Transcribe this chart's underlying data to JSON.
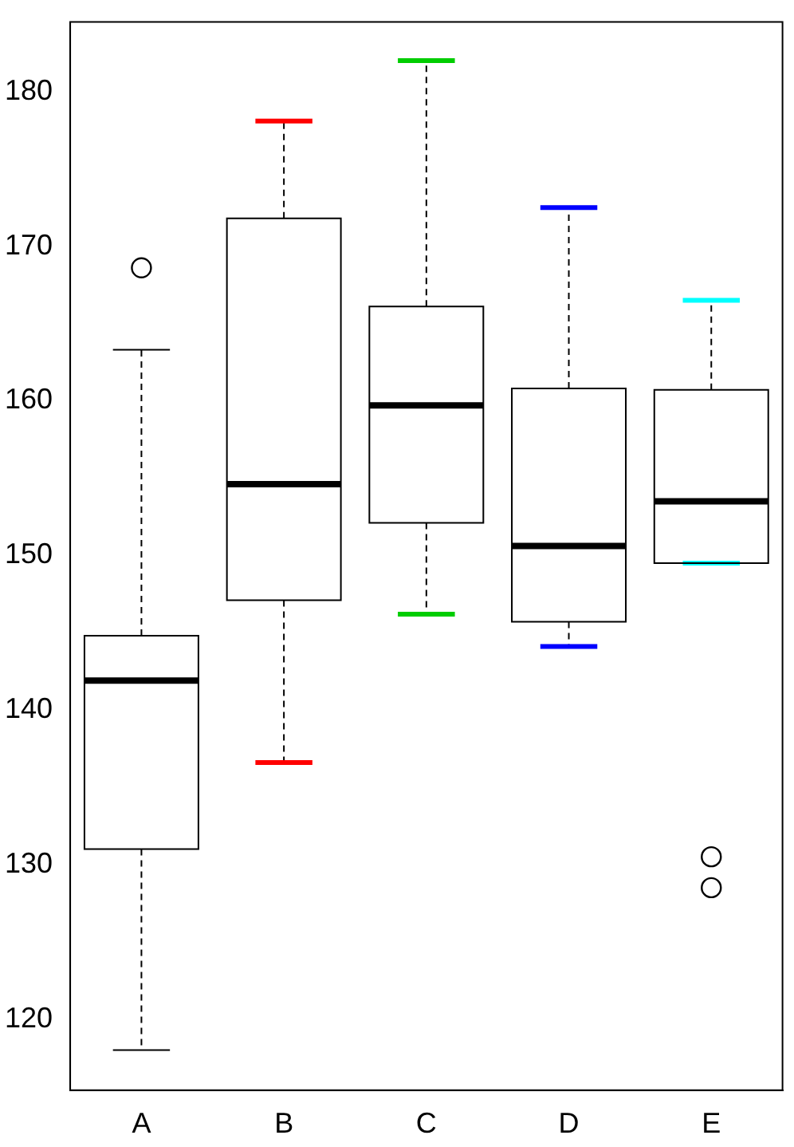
{
  "chart_data": {
    "type": "box",
    "categories": [
      "A",
      "B",
      "C",
      "D",
      "E"
    ],
    "boxes": [
      {
        "low": 118.0,
        "q1": 131.0,
        "median": 141.9,
        "q3": 144.8,
        "high": 163.3,
        "outliers": [
          168.6
        ]
      },
      {
        "low": 136.6,
        "q1": 147.1,
        "median": 154.6,
        "q3": 171.8,
        "high": 178.1
      },
      {
        "low": 146.2,
        "q1": 152.1,
        "median": 159.7,
        "q3": 166.1,
        "high": 182.0
      },
      {
        "low": 144.1,
        "q1": 145.7,
        "median": 150.6,
        "q3": 160.8,
        "high": 172.5
      },
      {
        "low": 149.5,
        "q1": 149.5,
        "median": 153.5,
        "q3": 160.7,
        "high": 166.5,
        "outliers": [
          130.5,
          128.5
        ]
      }
    ],
    "ylim": [
      115.4,
      184.5
    ],
    "yticks": [
      120,
      130,
      140,
      150,
      160,
      170,
      180
    ],
    "grid": false,
    "legend": false
  }
}
